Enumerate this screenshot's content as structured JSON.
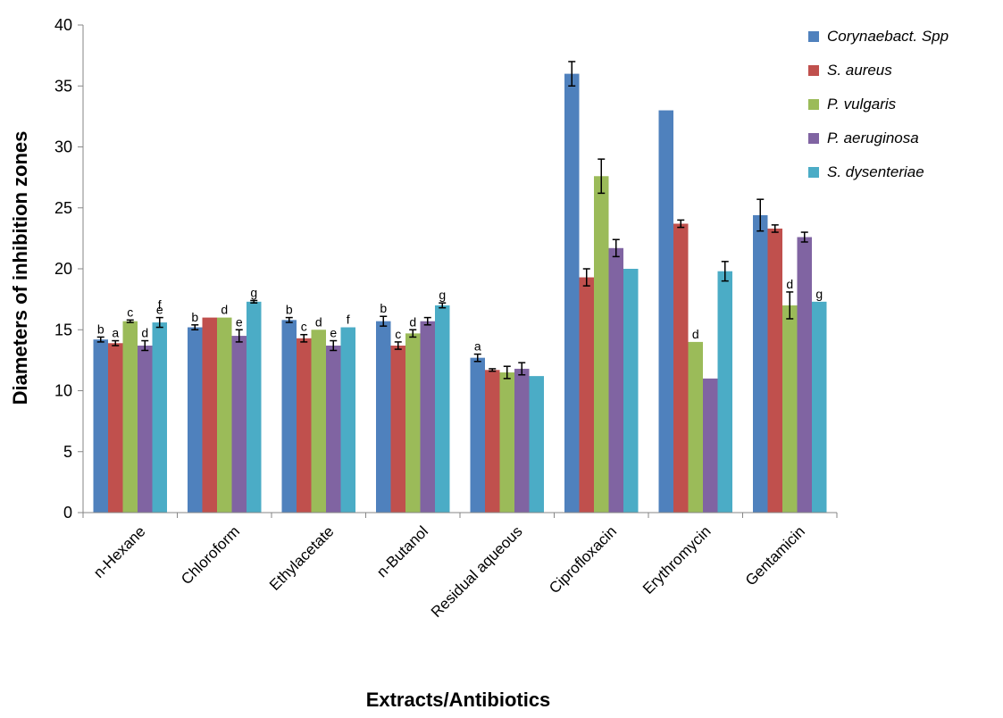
{
  "chart_data": {
    "type": "bar",
    "title": "",
    "xlabel": "Extracts/Antibiotics",
    "ylabel": "Diameters of inhibition zones",
    "ylim": [
      0,
      40
    ],
    "yticks": [
      0,
      5,
      10,
      15,
      20,
      25,
      30,
      35,
      40
    ],
    "grid": false,
    "legend_position": "top-right",
    "categories": [
      "n-Hexane",
      "Chloroform",
      "Ethylacetate",
      "n-Butanol",
      "Residual aqueous",
      "Ciprofloxacin",
      "Erythromycin",
      "Gentamicin"
    ],
    "series": [
      {
        "name": "Corynaebact. Spp",
        "color": "#4f81bd",
        "values": [
          14.2,
          15.2,
          15.8,
          15.7,
          12.7,
          36.0,
          33.0,
          24.4
        ],
        "errors": [
          0.2,
          0.2,
          0.2,
          0.4,
          0.3,
          1.0,
          0.0,
          1.3
        ],
        "letters": [
          "b",
          "b",
          "b",
          "b",
          "a",
          "",
          "",
          ""
        ]
      },
      {
        "name": "S. aureus",
        "color": "#c0504d",
        "values": [
          13.9,
          16.0,
          14.3,
          13.7,
          11.7,
          19.3,
          23.7,
          23.3
        ],
        "errors": [
          0.2,
          0.0,
          0.3,
          0.3,
          0.1,
          0.7,
          0.3,
          0.3
        ],
        "letters": [
          "a",
          "",
          "c",
          "c",
          "",
          "",
          "",
          ""
        ]
      },
      {
        "name": "P. vulgaris",
        "color": "#9bbb59",
        "values": [
          15.7,
          16.0,
          15.0,
          14.7,
          11.5,
          27.6,
          14.0,
          17.0
        ],
        "errors": [
          0.1,
          0.0,
          0.0,
          0.3,
          0.5,
          1.4,
          0.0,
          1.1
        ],
        "letters": [
          "c",
          "d",
          "d",
          "d",
          "",
          "",
          "d",
          "d"
        ]
      },
      {
        "name": "P. aeruginosa",
        "color": "#8064a2",
        "values": [
          13.7,
          14.5,
          13.7,
          15.7,
          11.8,
          21.7,
          11.0,
          22.6
        ],
        "errors": [
          0.4,
          0.5,
          0.4,
          0.3,
          0.5,
          0.7,
          0.0,
          0.4
        ],
        "letters": [
          "d",
          "e",
          "e",
          "",
          "",
          "",
          "",
          ""
        ]
      },
      {
        "name": "S. dysenteriae",
        "color": "#4bacc6",
        "values": [
          15.6,
          17.3,
          15.2,
          17.0,
          11.2,
          20.0,
          19.8,
          17.3
        ],
        "errors": [
          0.4,
          0.1,
          0.0,
          0.2,
          0.0,
          0.0,
          0.8,
          0.0
        ],
        "letters": [
          "e",
          "g",
          "f",
          "g",
          "",
          "",
          "",
          "g"
        ]
      }
    ],
    "annotations": [
      {
        "text": "f",
        "category": "n-Hexane",
        "above_value": 16.4
      },
      {
        "text": "e",
        "category": "Chloroform",
        "series": "P. aeruginosa"
      }
    ]
  }
}
